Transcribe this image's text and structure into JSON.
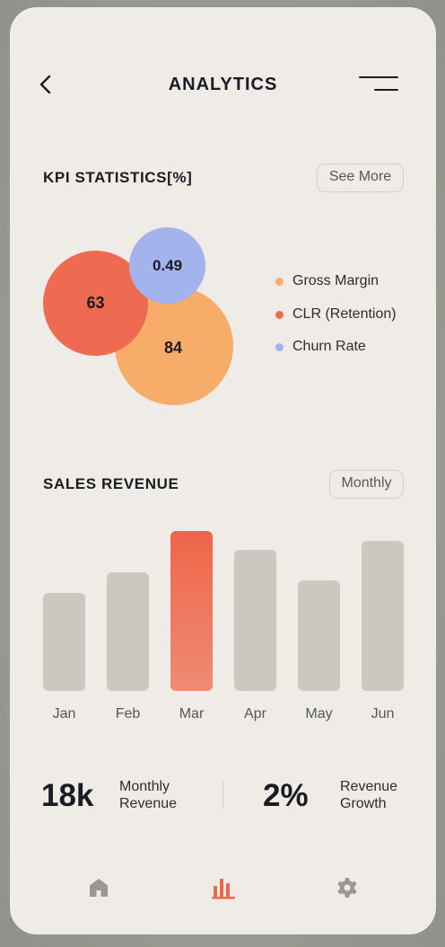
{
  "header": {
    "title": "ANALYTICS"
  },
  "kpi": {
    "title": "KPI STATISTICS[%]",
    "see_more_label": "See More",
    "metrics": [
      {
        "name": "Gross Margin",
        "value": "84",
        "color": "#f8ac6a"
      },
      {
        "name": "CLR (Retention)",
        "value": "63",
        "color": "#ee6a51"
      },
      {
        "name": "Churn Rate",
        "value": "0.49",
        "color": "#a3b3ec"
      }
    ]
  },
  "sales": {
    "title": "SALES REVENUE",
    "period_label": "Monthly",
    "accent_color": "#ef6548",
    "bar_color": "#cbc8bf"
  },
  "chart_data": {
    "type": "bar",
    "categories": [
      "Jan",
      "Feb",
      "Mar",
      "Apr",
      "May",
      "Jun"
    ],
    "values": [
      61,
      74,
      100,
      88,
      69,
      94
    ],
    "highlighted_index": 2,
    "ylim": [
      0,
      100
    ],
    "grid": false
  },
  "stats": [
    {
      "value": "18k",
      "label": "Monthly\nRevenue"
    },
    {
      "value": "2%",
      "label": "Revenue\nGrowth"
    }
  ],
  "nav": {
    "items": [
      {
        "icon": "home-icon",
        "active": false
      },
      {
        "icon": "bar-chart-icon",
        "active": true
      },
      {
        "icon": "gear-icon",
        "active": false
      }
    ],
    "active_color": "#ef6548",
    "inactive_color": "#9a9895"
  }
}
